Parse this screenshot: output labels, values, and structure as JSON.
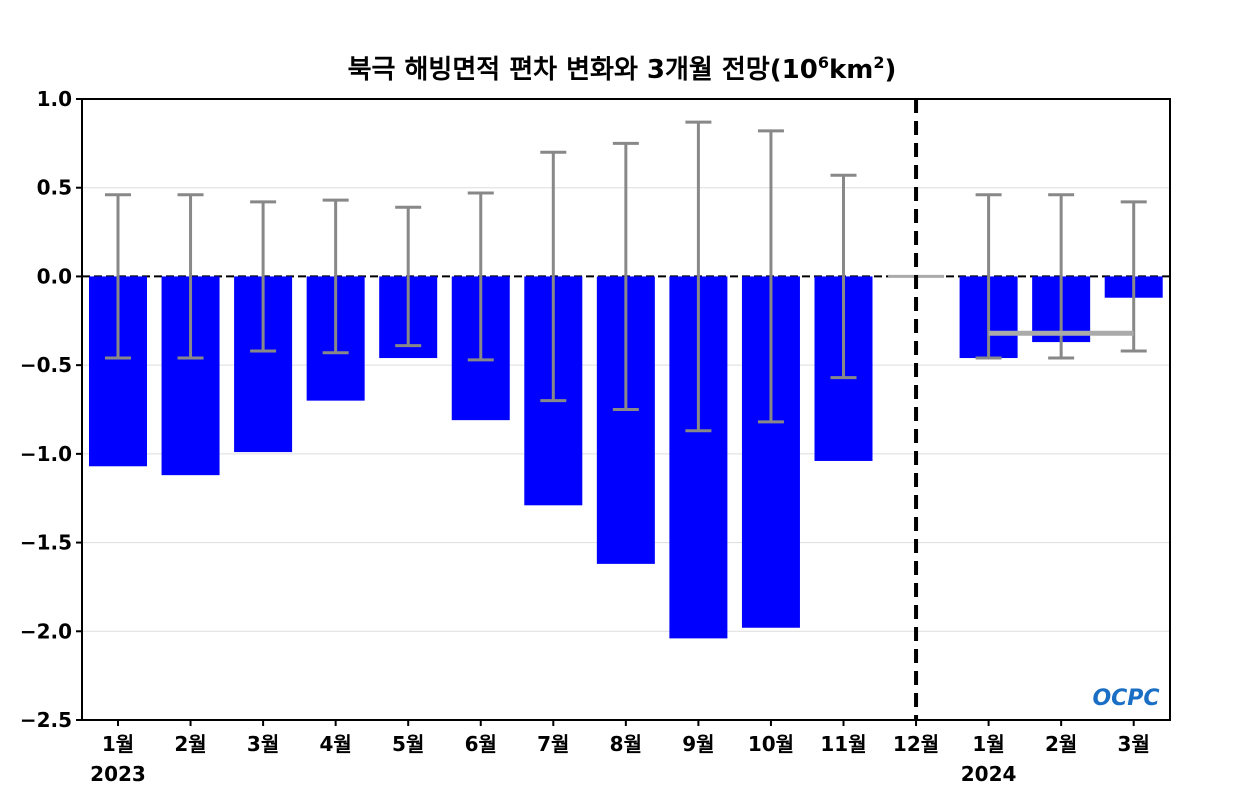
{
  "chart_data": {
    "type": "bar",
    "title": "북극 해빙면적 편차 변화와 3개월 전망",
    "title_unit": {
      "base": "10",
      "exp": "6",
      "unit": "km",
      "unit_exp": "2"
    },
    "categories": [
      "1월",
      "2월",
      "3월",
      "4월",
      "5월",
      "6월",
      "7월",
      "8월",
      "9월",
      "10월",
      "11월",
      "12월",
      "1월",
      "2월",
      "3월"
    ],
    "year_labels": [
      {
        "label": "2023",
        "category_index": 0
      },
      {
        "label": "2024",
        "category_index": 12
      }
    ],
    "values": [
      -1.07,
      -1.12,
      -0.99,
      -0.7,
      -0.46,
      -0.81,
      -1.29,
      -1.62,
      -2.04,
      -1.98,
      -1.04,
      0.0,
      -0.46,
      -0.37,
      -0.12
    ],
    "error": [
      0.46,
      0.46,
      0.42,
      0.43,
      0.39,
      0.47,
      0.7,
      0.75,
      0.87,
      0.82,
      0.57,
      0.0,
      0.46,
      0.46,
      0.42
    ],
    "forecast_mean": {
      "value": -0.32,
      "from_index": 12,
      "to_index": 14
    },
    "divider_index": 11,
    "ylim": [
      -2.5,
      1.0
    ],
    "yticks": [
      1.0,
      0.5,
      0.0,
      -0.5,
      -1.0,
      -1.5,
      -2.0,
      -2.5
    ],
    "ytick_labels": [
      "1.0",
      "0.5",
      "0.0",
      "−0.5",
      "−1.0",
      "−1.5",
      "−2.0",
      "−2.5"
    ],
    "grid": true,
    "colors": {
      "bar": "#0000ff",
      "error": "#888888",
      "mean": "#aaaaaa"
    },
    "logo": "OCPC"
  }
}
